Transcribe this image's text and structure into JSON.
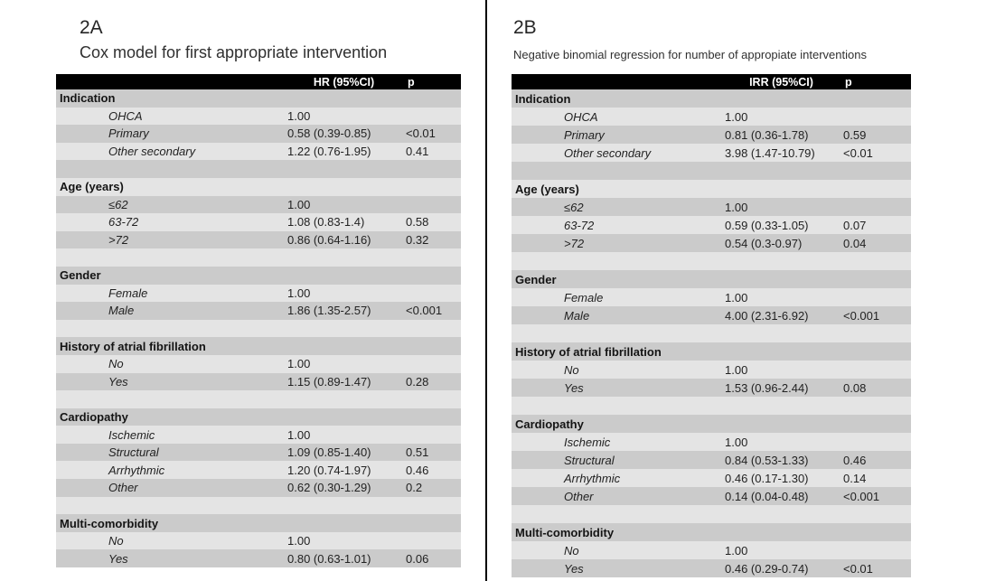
{
  "colors": {
    "background": "#ffffff",
    "divider": "#000000",
    "table_header_bg": "#000000",
    "table_header_text": "#ffffff",
    "row_dark": "#cbcbcb",
    "row_light": "#e4e4e4"
  },
  "tables": [
    {
      "label": "2A",
      "title": "Cox model for first appropriate intervention",
      "header": {
        "value": "HR (95%CI)",
        "p": "p"
      },
      "rows": [
        {
          "t": "section",
          "label": "Indication"
        },
        {
          "t": "item",
          "label": "OHCA",
          "value": "1.00",
          "p": ""
        },
        {
          "t": "item",
          "label": "Primary",
          "value": "0.58 (0.39-0.85)",
          "p": "<0.01"
        },
        {
          "t": "item",
          "label": "Other secondary",
          "value": "1.22 (0.76-1.95)",
          "p": "0.41"
        },
        {
          "t": "spacer"
        },
        {
          "t": "section",
          "label": "Age (years)"
        },
        {
          "t": "item",
          "label": "≤62",
          "value": "1.00",
          "p": ""
        },
        {
          "t": "item",
          "label": "63-72",
          "value": "1.08 (0.83-1.4)",
          "p": "0.58"
        },
        {
          "t": "item",
          "label": ">72",
          "value": "0.86 (0.64-1.16)",
          "p": "0.32"
        },
        {
          "t": "spacer"
        },
        {
          "t": "section",
          "label": "Gender"
        },
        {
          "t": "item",
          "label": "Female",
          "value": "1.00",
          "p": ""
        },
        {
          "t": "item",
          "label": "Male",
          "value": "1.86 (1.35-2.57)",
          "p": "<0.001"
        },
        {
          "t": "spacer"
        },
        {
          "t": "section",
          "label": "History of atrial fibrillation"
        },
        {
          "t": "item",
          "label": "No",
          "value": "1.00",
          "p": ""
        },
        {
          "t": "item",
          "label": "Yes",
          "value": "1.15 (0.89-1.47)",
          "p": "0.28"
        },
        {
          "t": "spacer"
        },
        {
          "t": "section",
          "label": "Cardiopathy"
        },
        {
          "t": "item",
          "label": "Ischemic",
          "value": "1.00",
          "p": ""
        },
        {
          "t": "item",
          "label": "Structural",
          "value": "1.09 (0.85-1.40)",
          "p": "0.51"
        },
        {
          "t": "item",
          "label": "Arrhythmic",
          "value": "1.20 (0.74-1.97)",
          "p": "0.46"
        },
        {
          "t": "item",
          "label": "Other",
          "value": "0.62 (0.30-1.29)",
          "p": "0.2"
        },
        {
          "t": "spacer"
        },
        {
          "t": "section",
          "label": "Multi-comorbidity"
        },
        {
          "t": "item",
          "label": "No",
          "value": "1.00",
          "p": ""
        },
        {
          "t": "item",
          "label": "Yes",
          "value": "0.80 (0.63-1.01)",
          "p": "0.06"
        }
      ]
    },
    {
      "label": "2B",
      "title": "Negative binomial regression for number of appropiate interventions",
      "header": {
        "value": "IRR (95%CI)",
        "p": "p"
      },
      "rows": [
        {
          "t": "section",
          "label": "Indication"
        },
        {
          "t": "item",
          "label": "OHCA",
          "value": "1.00",
          "p": ""
        },
        {
          "t": "item",
          "label": "Primary",
          "value": "0.81 (0.36-1.78)",
          "p": "0.59"
        },
        {
          "t": "item",
          "label": "Other secondary",
          "value": "3.98 (1.47-10.79)",
          "p": "<0.01"
        },
        {
          "t": "spacer"
        },
        {
          "t": "section",
          "label": "Age (years)"
        },
        {
          "t": "item",
          "label": "≤62",
          "value": "1.00",
          "p": ""
        },
        {
          "t": "item",
          "label": "63-72",
          "value": "0.59 (0.33-1.05)",
          "p": "0.07"
        },
        {
          "t": "item",
          "label": ">72",
          "value": "0.54 (0.3-0.97)",
          "p": "0.04"
        },
        {
          "t": "spacer"
        },
        {
          "t": "section",
          "label": "Gender"
        },
        {
          "t": "item",
          "label": "Female",
          "value": "1.00",
          "p": ""
        },
        {
          "t": "item",
          "label": "Male",
          "value": "4.00 (2.31-6.92)",
          "p": "<0.001"
        },
        {
          "t": "spacer"
        },
        {
          "t": "section",
          "label": "History of atrial fibrillation"
        },
        {
          "t": "item",
          "label": "No",
          "value": "1.00",
          "p": ""
        },
        {
          "t": "item",
          "label": "Yes",
          "value": "1.53 (0.96-2.44)",
          "p": "0.08"
        },
        {
          "t": "spacer"
        },
        {
          "t": "section",
          "label": "Cardiopathy"
        },
        {
          "t": "item",
          "label": "Ischemic",
          "value": "1.00",
          "p": ""
        },
        {
          "t": "item",
          "label": "Structural",
          "value": "0.84 (0.53-1.33)",
          "p": "0.46"
        },
        {
          "t": "item",
          "label": "Arrhythmic",
          "value": "0.46 (0.17-1.30)",
          "p": "0.14"
        },
        {
          "t": "item",
          "label": "Other",
          "value": "0.14 (0.04-0.48)",
          "p": "<0.001"
        },
        {
          "t": "spacer"
        },
        {
          "t": "section",
          "label": "Multi-comorbidity"
        },
        {
          "t": "item",
          "label": "No",
          "value": "1.00",
          "p": ""
        },
        {
          "t": "item",
          "label": "Yes",
          "value": "0.46 (0.29-0.74)",
          "p": "<0.01"
        }
      ]
    }
  ]
}
